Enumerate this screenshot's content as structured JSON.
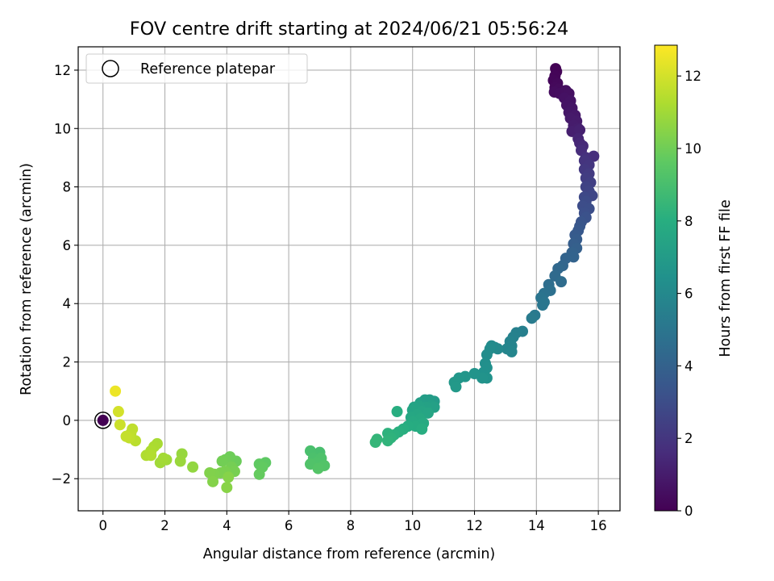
{
  "chart_data": {
    "type": "scatter",
    "title": "FOV centre drift starting at 2024/06/21 05:56:24",
    "xlabel": "Angular distance from reference (arcmin)",
    "ylabel": "Rotation from reference (arcmin)",
    "xlim": [
      -0.8,
      16.7
    ],
    "ylim": [
      -3.1,
      12.8
    ],
    "xticks": [
      "0",
      "2",
      "4",
      "6",
      "8",
      "10",
      "12",
      "14",
      "16"
    ],
    "yticks": [
      "−2",
      "0",
      "2",
      "4",
      "6",
      "8",
      "10",
      "12"
    ],
    "grid": true,
    "legend": {
      "label": "Reference platepar",
      "placement": "top-left"
    },
    "colorbar": {
      "label": "Hours from first FF file",
      "range": [
        0,
        12.85
      ],
      "ticks": [
        "0",
        "2",
        "4",
        "6",
        "8",
        "10",
        "12"
      ],
      "colormap": "viridis"
    },
    "reference_point": {
      "x": 0,
      "y": 0,
      "hours": 0
    },
    "points": [
      [
        14.62,
        12.05,
        0.05
      ],
      [
        14.65,
        11.95,
        0.1
      ],
      [
        14.6,
        11.8,
        0.15
      ],
      [
        14.55,
        11.65,
        0.2
      ],
      [
        14.68,
        11.55,
        0.25
      ],
      [
        14.6,
        11.4,
        0.3
      ],
      [
        14.72,
        11.35,
        0.35
      ],
      [
        14.58,
        11.25,
        0.4
      ],
      [
        14.75,
        11.2,
        0.45
      ],
      [
        14.95,
        11.3,
        0.5
      ],
      [
        15.05,
        11.2,
        0.55
      ],
      [
        14.9,
        11.05,
        0.6
      ],
      [
        15.1,
        10.95,
        0.65
      ],
      [
        14.98,
        10.8,
        0.7
      ],
      [
        15.15,
        10.7,
        0.75
      ],
      [
        15.05,
        10.55,
        0.8
      ],
      [
        15.25,
        10.45,
        0.85
      ],
      [
        15.1,
        10.35,
        0.9
      ],
      [
        15.3,
        10.25,
        0.95
      ],
      [
        15.2,
        10.1,
        1.0
      ],
      [
        15.35,
        10.0,
        1.05
      ],
      [
        15.15,
        9.9,
        1.1
      ],
      [
        15.4,
        9.95,
        1.15
      ],
      [
        15.35,
        9.65,
        1.3
      ],
      [
        15.4,
        9.5,
        1.4
      ],
      [
        15.5,
        9.4,
        1.5
      ],
      [
        15.45,
        9.25,
        1.6
      ],
      [
        15.85,
        9.05,
        1.7
      ],
      [
        15.6,
        9.0,
        1.8
      ],
      [
        15.55,
        8.9,
        1.9
      ],
      [
        15.7,
        8.75,
        2.0
      ],
      [
        15.55,
        8.6,
        2.1
      ],
      [
        15.7,
        8.45,
        2.2
      ],
      [
        15.6,
        8.3,
        2.3
      ],
      [
        15.75,
        8.15,
        2.4
      ],
      [
        15.6,
        8.0,
        2.5
      ],
      [
        15.7,
        7.85,
        2.6
      ],
      [
        15.8,
        7.7,
        2.7
      ],
      [
        15.55,
        7.65,
        2.8
      ],
      [
        15.6,
        7.5,
        2.9
      ],
      [
        15.5,
        7.35,
        3.0
      ],
      [
        15.7,
        7.25,
        3.05
      ],
      [
        15.55,
        7.1,
        3.1
      ],
      [
        15.6,
        6.95,
        3.2
      ],
      [
        15.45,
        6.8,
        3.3
      ],
      [
        15.4,
        6.65,
        3.4
      ],
      [
        15.35,
        6.5,
        3.5
      ],
      [
        15.25,
        6.35,
        3.6
      ],
      [
        15.3,
        6.2,
        3.7
      ],
      [
        15.2,
        6.05,
        3.8
      ],
      [
        15.3,
        5.9,
        3.9
      ],
      [
        15.15,
        5.75,
        4.0
      ],
      [
        15.2,
        5.6,
        4.05
      ],
      [
        14.95,
        5.55,
        4.1
      ],
      [
        14.85,
        5.3,
        4.2
      ],
      [
        14.7,
        5.2,
        4.3
      ],
      [
        14.6,
        4.95,
        4.4
      ],
      [
        14.8,
        4.75,
        4.5
      ],
      [
        14.4,
        4.65,
        4.6
      ],
      [
        14.45,
        4.45,
        4.7
      ],
      [
        14.25,
        4.35,
        4.8
      ],
      [
        14.15,
        4.2,
        4.9
      ],
      [
        14.25,
        4.05,
        5.0
      ],
      [
        14.2,
        3.95,
        5.05
      ],
      [
        13.95,
        3.6,
        5.2
      ],
      [
        13.85,
        3.5,
        5.3
      ],
      [
        13.55,
        3.05,
        5.5
      ],
      [
        13.35,
        3.0,
        5.55
      ],
      [
        13.25,
        2.85,
        5.6
      ],
      [
        13.15,
        2.7,
        5.7
      ],
      [
        13.2,
        2.55,
        5.75
      ],
      [
        13.05,
        2.45,
        5.8
      ],
      [
        13.2,
        2.35,
        5.85
      ],
      [
        12.75,
        2.45,
        6.0
      ],
      [
        12.65,
        2.5,
        6.05
      ],
      [
        12.55,
        2.55,
        6.1
      ],
      [
        12.5,
        2.45,
        6.15
      ],
      [
        12.4,
        2.25,
        6.2
      ],
      [
        12.35,
        1.95,
        6.3
      ],
      [
        12.4,
        1.8,
        6.35
      ],
      [
        12.3,
        1.65,
        6.4
      ],
      [
        12.4,
        1.45,
        6.5
      ],
      [
        12.25,
        1.45,
        6.55
      ],
      [
        12.0,
        1.6,
        6.6
      ],
      [
        11.7,
        1.5,
        6.7
      ],
      [
        11.5,
        1.45,
        6.75
      ],
      [
        11.35,
        1.3,
        6.8
      ],
      [
        11.4,
        1.15,
        6.85
      ],
      [
        10.7,
        0.65,
        7.0
      ],
      [
        10.55,
        0.7,
        7.05
      ],
      [
        10.4,
        0.7,
        7.1
      ],
      [
        10.25,
        0.6,
        7.15
      ],
      [
        10.6,
        0.5,
        7.2
      ],
      [
        10.7,
        0.45,
        7.25
      ],
      [
        10.45,
        0.45,
        7.3
      ],
      [
        10.2,
        0.5,
        7.35
      ],
      [
        10.05,
        0.45,
        7.4
      ],
      [
        10.0,
        0.35,
        7.45
      ],
      [
        10.3,
        0.3,
        7.5
      ],
      [
        10.5,
        0.25,
        7.55
      ],
      [
        10.15,
        0.2,
        7.6
      ],
      [
        9.95,
        0.1,
        7.65
      ],
      [
        10.25,
        0.05,
        7.7
      ],
      [
        10.0,
        -0.05,
        7.75
      ],
      [
        10.35,
        -0.1,
        7.8
      ],
      [
        10.1,
        -0.2,
        7.85
      ],
      [
        9.85,
        -0.2,
        7.9
      ],
      [
        10.3,
        -0.3,
        7.95
      ],
      [
        9.5,
        0.3,
        8.0
      ],
      [
        9.7,
        -0.3,
        8.05
      ],
      [
        9.55,
        -0.4,
        8.1
      ],
      [
        9.4,
        -0.5,
        8.15
      ],
      [
        9.2,
        -0.45,
        8.2
      ],
      [
        9.3,
        -0.6,
        8.25
      ],
      [
        9.2,
        -0.7,
        8.3
      ],
      [
        8.85,
        -0.65,
        8.4
      ],
      [
        8.8,
        -0.75,
        8.45
      ],
      [
        7.0,
        -1.1,
        9.0
      ],
      [
        6.7,
        -1.05,
        9.05
      ],
      [
        6.8,
        -1.3,
        9.1
      ],
      [
        7.05,
        -1.3,
        9.15
      ],
      [
        6.9,
        -1.45,
        9.2
      ],
      [
        6.7,
        -1.5,
        9.25
      ],
      [
        7.15,
        -1.55,
        9.3
      ],
      [
        6.95,
        -1.65,
        9.35
      ],
      [
        5.25,
        -1.45,
        9.6
      ],
      [
        5.05,
        -1.5,
        9.65
      ],
      [
        5.15,
        -1.6,
        9.7
      ],
      [
        5.05,
        -1.85,
        9.75
      ],
      [
        4.3,
        -1.4,
        9.9
      ],
      [
        4.1,
        -1.25,
        9.95
      ],
      [
        3.95,
        -1.35,
        10.0
      ],
      [
        3.85,
        -1.4,
        10.05
      ],
      [
        4.15,
        -1.6,
        10.1
      ],
      [
        4.25,
        -1.75,
        10.15
      ],
      [
        3.95,
        -1.75,
        10.2
      ],
      [
        3.8,
        -1.8,
        10.25
      ],
      [
        3.6,
        -1.85,
        10.3
      ],
      [
        3.45,
        -1.8,
        10.35
      ],
      [
        3.55,
        -2.1,
        10.4
      ],
      [
        4.05,
        -1.95,
        10.45
      ],
      [
        4.0,
        -2.3,
        10.5
      ],
      [
        2.9,
        -1.6,
        10.7
      ],
      [
        2.55,
        -1.15,
        10.8
      ],
      [
        2.5,
        -1.4,
        10.85
      ],
      [
        2.05,
        -1.35,
        10.95
      ],
      [
        1.85,
        -1.45,
        11.0
      ],
      [
        1.95,
        -1.3,
        11.05
      ],
      [
        1.75,
        -0.8,
        11.15
      ],
      [
        1.65,
        -0.9,
        11.2
      ],
      [
        1.55,
        -1.05,
        11.25
      ],
      [
        1.4,
        -1.2,
        11.3
      ],
      [
        1.55,
        -1.2,
        11.35
      ],
      [
        1.05,
        -0.7,
        11.5
      ],
      [
        0.9,
        -0.45,
        11.55
      ],
      [
        0.95,
        -0.3,
        11.6
      ],
      [
        0.85,
        -0.6,
        11.65
      ],
      [
        0.75,
        -0.55,
        11.7
      ],
      [
        0.55,
        -0.15,
        11.85
      ],
      [
        0.5,
        0.3,
        12.0
      ],
      [
        0.4,
        1.0,
        12.5
      ]
    ]
  }
}
